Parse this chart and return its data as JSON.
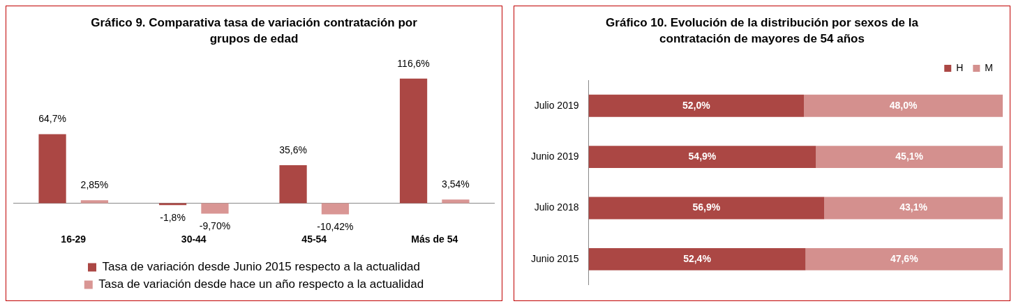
{
  "chart_data": [
    {
      "type": "bar",
      "title": "Gráfico 9. Comparativa tasa de variación contratación por grupos de edad",
      "categories": [
        "16-29",
        "30-44",
        "45-54",
        "Más de 54"
      ],
      "legend": "bottom",
      "tick_labels": "x",
      "series": [
        {
          "name": "Tasa de variación desde Junio 2015 respecto a la actualidad",
          "color": "#ab4744",
          "values": [
            64.7,
            -1.8,
            35.6,
            116.6
          ],
          "value_labels": [
            "64,7%",
            "-1,8%",
            "35,6%",
            "116,6%"
          ]
        },
        {
          "name": "Tasa de variación desde hace un año respecto a la actualidad",
          "color": "#d99694",
          "values": [
            2.85,
            -9.7,
            -10.42,
            3.54
          ],
          "value_labels": [
            "2,85%",
            "-9,70%",
            "-10,42%",
            "3,54%"
          ]
        }
      ]
    },
    {
      "type": "bar",
      "title": "Gráfico 10. Evolución de la distribución por sexos de la contratación de mayores de 54 años",
      "orientation": "horizontal",
      "stacked": true,
      "categories": [
        "Julio 2019",
        "Junio 2019",
        "Julio 2018",
        "Junio 2015"
      ],
      "xlim": [
        0,
        100
      ],
      "legend": "top right",
      "tick_labels": "y",
      "series": [
        {
          "name": "H",
          "color": "#ab4744",
          "values": [
            52.0,
            54.9,
            56.9,
            52.4
          ],
          "value_labels": [
            "52,0%",
            "54,9%",
            "56,9%",
            "52,4%"
          ]
        },
        {
          "name": "M",
          "color": "#d4908e",
          "values": [
            48.0,
            45.1,
            43.1,
            47.6
          ],
          "value_labels": [
            "48,0%",
            "45,1%",
            "43,1%",
            "47,6%"
          ]
        }
      ]
    }
  ]
}
